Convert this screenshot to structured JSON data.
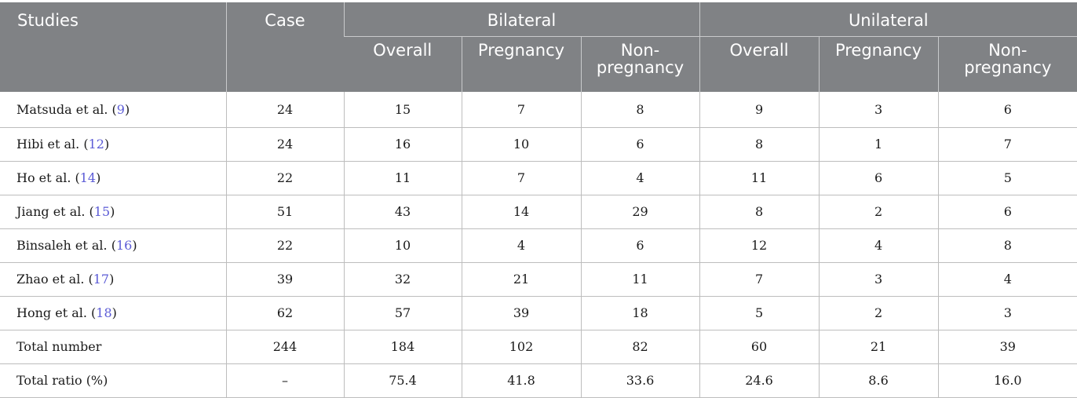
{
  "header": {
    "studies": "Studies",
    "case": "Case",
    "bilateral": "Bilateral",
    "unilateral": "Unilateral",
    "sub": [
      "Overall",
      "Pregnancy",
      "Non-pregnancy",
      "Overall",
      "Pregnancy",
      "Non-pregnancy"
    ]
  },
  "rows": [
    {
      "study": "Matsuda et al. (",
      "ref": "9",
      "close": ")",
      "case": "24",
      "b_overall": "15",
      "b_preg": "7",
      "b_nonpreg": "8",
      "u_overall": "9",
      "u_preg": "3",
      "u_nonpreg": "6"
    },
    {
      "study": "Hibi et al. (",
      "ref": "12",
      "close": ")",
      "case": "24",
      "b_overall": "16",
      "b_preg": "10",
      "b_nonpreg": "6",
      "u_overall": "8",
      "u_preg": "1",
      "u_nonpreg": "7"
    },
    {
      "study": "Ho et al. (",
      "ref": "14",
      "close": ")",
      "case": "22",
      "b_overall": "11",
      "b_preg": "7",
      "b_nonpreg": "4",
      "u_overall": "11",
      "u_preg": "6",
      "u_nonpreg": "5"
    },
    {
      "study": "Jiang et al. (",
      "ref": "15",
      "close": ")",
      "case": "51",
      "b_overall": "43",
      "b_preg": "14",
      "b_nonpreg": "29",
      "u_overall": "8",
      "u_preg": "2",
      "u_nonpreg": "6"
    },
    {
      "study": "Binsaleh et al. (",
      "ref": "16",
      "close": ")",
      "case": "22",
      "b_overall": "10",
      "b_preg": "4",
      "b_nonpreg": "6",
      "u_overall": "12",
      "u_preg": "4",
      "u_nonpreg": "8"
    },
    {
      "study": "Zhao et al. (",
      "ref": "17",
      "close": ")",
      "case": "39",
      "b_overall": "32",
      "b_preg": "21",
      "b_nonpreg": "11",
      "u_overall": "7",
      "u_preg": "3",
      "u_nonpreg": "4"
    },
    {
      "study": "Hong et al. (",
      "ref": "18",
      "close": ")",
      "case": "62",
      "b_overall": "57",
      "b_preg": "39",
      "b_nonpreg": "18",
      "u_overall": "5",
      "u_preg": "2",
      "u_nonpreg": "3"
    },
    {
      "study": "Total number",
      "ref": "",
      "close": "",
      "case": "244",
      "b_overall": "184",
      "b_preg": "102",
      "b_nonpreg": "82",
      "u_overall": "60",
      "u_preg": "21",
      "u_nonpreg": "39"
    },
    {
      "study": "Total ratio (%)",
      "ref": "",
      "close": "",
      "case": "–",
      "b_overall": "75.4",
      "b_preg": "41.8",
      "b_nonpreg": "33.6",
      "u_overall": "24.6",
      "u_preg": "8.6",
      "u_nonpreg": "16.0"
    }
  ]
}
